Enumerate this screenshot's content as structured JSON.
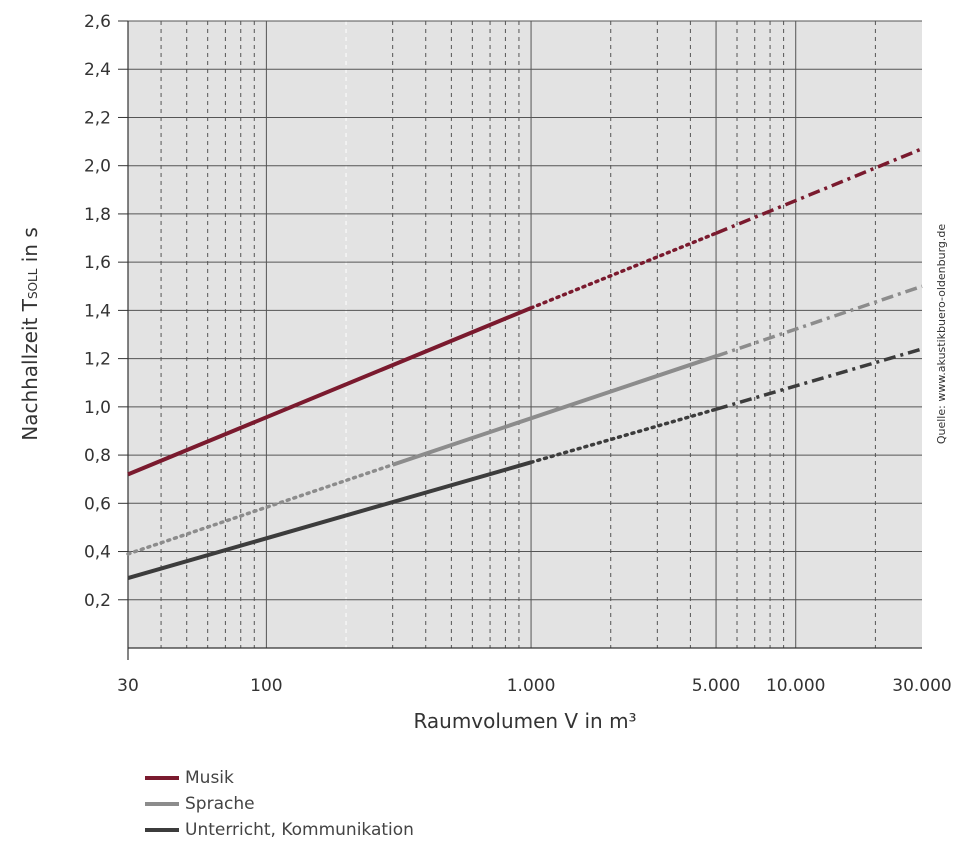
{
  "chart_data": {
    "type": "line",
    "ylabel": "Nachhallzeit T",
    "ylabel_sub": "SOLL",
    "ylabel_suffix": " in s",
    "xlabel": "Raumvolumen V in m³",
    "source": "Quelle: www.akustikbuero-oldenburg.de",
    "x_scale": "log",
    "xlim": [
      30,
      30000
    ],
    "ylim": [
      0,
      2.6
    ],
    "grid": true,
    "legend_position": "bottom-left",
    "x_tick_labels": [
      {
        "value": 30,
        "label": "30"
      },
      {
        "value": 100,
        "label": "100"
      },
      {
        "value": 1000,
        "label": "1.000"
      },
      {
        "value": 5000,
        "label": "5.000"
      },
      {
        "value": 10000,
        "label": "10.000"
      },
      {
        "value": 30000,
        "label": "30.000"
      }
    ],
    "y_ticks": [
      {
        "value": 0.2,
        "label": "0,2"
      },
      {
        "value": 0.4,
        "label": "0,4"
      },
      {
        "value": 0.6,
        "label": "0,6"
      },
      {
        "value": 0.8,
        "label": "0,8"
      },
      {
        "value": 1.0,
        "label": "1,0"
      },
      {
        "value": 1.2,
        "label": "1,2"
      },
      {
        "value": 1.4,
        "label": "1,4"
      },
      {
        "value": 1.6,
        "label": "1,6"
      },
      {
        "value": 1.8,
        "label": "1,8"
      },
      {
        "value": 2.0,
        "label": "2,0"
      },
      {
        "value": 2.2,
        "label": "2,2"
      },
      {
        "value": 2.4,
        "label": "2,4"
      },
      {
        "value": 2.6,
        "label": "2,6"
      }
    ],
    "series": [
      {
        "name": "Musik",
        "color": "#7a1a2e",
        "segments": [
          {
            "style": "solid",
            "x": [
              30,
              1000
            ],
            "y": [
              0.72,
              1.41
            ]
          },
          {
            "style": "dotted",
            "x": [
              1000,
              5000
            ],
            "y": [
              1.41,
              1.72
            ]
          },
          {
            "style": "dashdot",
            "x": [
              5000,
              30000
            ],
            "y": [
              1.72,
              2.07
            ]
          }
        ]
      },
      {
        "name": "Sprache",
        "color": "#8c8c8c",
        "segments": [
          {
            "style": "dotted",
            "x": [
              30,
              300
            ],
            "y": [
              0.39,
              0.76
            ]
          },
          {
            "style": "solid",
            "x": [
              300,
              5000
            ],
            "y": [
              0.76,
              1.21
            ]
          },
          {
            "style": "dashdot",
            "x": [
              5000,
              30000
            ],
            "y": [
              1.21,
              1.5
            ]
          }
        ]
      },
      {
        "name": "Unterricht, Kommunikation",
        "color": "#3c3c3c",
        "segments": [
          {
            "style": "solid",
            "x": [
              30,
              1000
            ],
            "y": [
              0.29,
              0.77
            ]
          },
          {
            "style": "dotted",
            "x": [
              1000,
              5000
            ],
            "y": [
              0.77,
              0.99
            ]
          },
          {
            "style": "dashdot",
            "x": [
              5000,
              30000
            ],
            "y": [
              0.99,
              1.24
            ]
          }
        ]
      }
    ]
  }
}
